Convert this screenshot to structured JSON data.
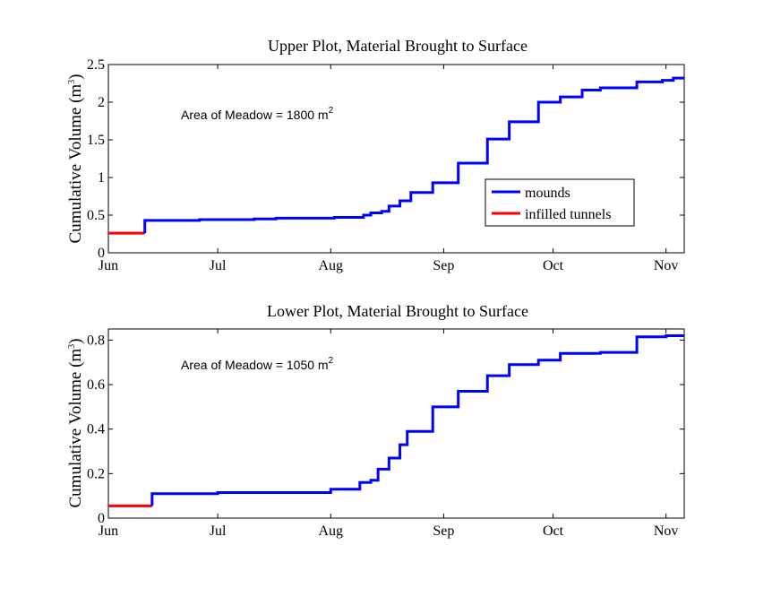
{
  "chart_data": [
    {
      "type": "line",
      "title": "Upper Plot, Material Brought to Surface",
      "ylabel": "Cumulative Volume (m",
      "ylabel_sup": "3",
      "ylabel_close": ")",
      "annotation": "Area of Meadow = 1800 m",
      "annotation_sup": "2",
      "xlim": [
        0,
        158
      ],
      "ylim": [
        0,
        2.5
      ],
      "xticks": [
        {
          "label": "Jun",
          "value": 0
        },
        {
          "label": "Jul",
          "value": 30
        },
        {
          "label": "Aug",
          "value": 61
        },
        {
          "label": "Sep",
          "value": 92
        },
        {
          "label": "Oct",
          "value": 122
        },
        {
          "label": "Nov",
          "value": 153
        }
      ],
      "yticks": [
        {
          "label": "0",
          "value": 0
        },
        {
          "label": "0.5",
          "value": 0.5
        },
        {
          "label": "1",
          "value": 1
        },
        {
          "label": "1.5",
          "value": 1.5
        },
        {
          "label": "2",
          "value": 2
        },
        {
          "label": "2.5",
          "value": 2.5
        }
      ],
      "legend": {
        "position": "inside-right",
        "entries": [
          {
            "name": "mounds",
            "color": "#0000ff"
          },
          {
            "name": "infilled tunnels",
            "color": "#ff0000"
          }
        ]
      },
      "series": [
        {
          "name": "infilled tunnels",
          "color": "#ff0000",
          "points": [
            [
              0,
              0.26
            ],
            [
              10,
              0.26
            ]
          ]
        },
        {
          "name": "mounds",
          "color": "#0000ff",
          "points": [
            [
              10,
              0.26
            ],
            [
              10,
              0.43
            ],
            [
              25,
              0.43
            ],
            [
              25,
              0.44
            ],
            [
              40,
              0.44
            ],
            [
              40,
              0.45
            ],
            [
              46,
              0.45
            ],
            [
              46,
              0.46
            ],
            [
              62,
              0.46
            ],
            [
              62,
              0.47
            ],
            [
              70,
              0.47
            ],
            [
              70,
              0.5
            ],
            [
              72,
              0.5
            ],
            [
              72,
              0.53
            ],
            [
              75,
              0.53
            ],
            [
              75,
              0.55
            ],
            [
              77,
              0.55
            ],
            [
              77,
              0.62
            ],
            [
              80,
              0.62
            ],
            [
              80,
              0.69
            ],
            [
              83,
              0.69
            ],
            [
              83,
              0.8
            ],
            [
              89,
              0.8
            ],
            [
              89,
              0.93
            ],
            [
              96,
              0.93
            ],
            [
              96,
              1.19
            ],
            [
              104,
              1.19
            ],
            [
              104,
              1.51
            ],
            [
              110,
              1.51
            ],
            [
              110,
              1.74
            ],
            [
              118,
              1.74
            ],
            [
              118,
              2.0
            ],
            [
              124,
              2.0
            ],
            [
              124,
              2.07
            ],
            [
              130,
              2.07
            ],
            [
              130,
              2.16
            ],
            [
              135,
              2.16
            ],
            [
              135,
              2.19
            ],
            [
              145,
              2.19
            ],
            [
              145,
              2.27
            ],
            [
              152,
              2.27
            ],
            [
              152,
              2.29
            ],
            [
              155,
              2.29
            ],
            [
              155,
              2.32
            ],
            [
              158,
              2.32
            ]
          ]
        }
      ]
    },
    {
      "type": "line",
      "title": "Lower Plot, Material Brought to Surface",
      "ylabel": "Cumulative Volume (m",
      "ylabel_sup": "3",
      "ylabel_close": ")",
      "annotation": "Area of Meadow = 1050 m",
      "annotation_sup": "2",
      "xlim": [
        0,
        158
      ],
      "ylim": [
        0,
        0.85
      ],
      "xticks": [
        {
          "label": "Jun",
          "value": 0
        },
        {
          "label": "Jul",
          "value": 30
        },
        {
          "label": "Aug",
          "value": 61
        },
        {
          "label": "Sep",
          "value": 92
        },
        {
          "label": "Oct",
          "value": 122
        },
        {
          "label": "Nov",
          "value": 153
        }
      ],
      "yticks": [
        {
          "label": "0",
          "value": 0
        },
        {
          "label": "0.2",
          "value": 0.2
        },
        {
          "label": "0.4",
          "value": 0.4
        },
        {
          "label": "0.6",
          "value": 0.6
        },
        {
          "label": "0.8",
          "value": 0.8
        }
      ],
      "series": [
        {
          "name": "infilled tunnels",
          "color": "#ff0000",
          "points": [
            [
              0,
              0.055
            ],
            [
              12,
              0.055
            ]
          ]
        },
        {
          "name": "mounds",
          "color": "#0000ff",
          "points": [
            [
              12,
              0.055
            ],
            [
              12,
              0.11
            ],
            [
              30,
              0.11
            ],
            [
              30,
              0.115
            ],
            [
              61,
              0.115
            ],
            [
              61,
              0.13
            ],
            [
              69,
              0.13
            ],
            [
              69,
              0.16
            ],
            [
              72,
              0.16
            ],
            [
              72,
              0.17
            ],
            [
              74,
              0.17
            ],
            [
              74,
              0.22
            ],
            [
              77,
              0.22
            ],
            [
              77,
              0.27
            ],
            [
              80,
              0.27
            ],
            [
              80,
              0.33
            ],
            [
              82,
              0.33
            ],
            [
              82,
              0.39
            ],
            [
              89,
              0.39
            ],
            [
              89,
              0.5
            ],
            [
              96,
              0.5
            ],
            [
              96,
              0.57
            ],
            [
              104,
              0.57
            ],
            [
              104,
              0.64
            ],
            [
              110,
              0.64
            ],
            [
              110,
              0.69
            ],
            [
              118,
              0.69
            ],
            [
              118,
              0.71
            ],
            [
              124,
              0.71
            ],
            [
              124,
              0.74
            ],
            [
              135,
              0.74
            ],
            [
              135,
              0.745
            ],
            [
              145,
              0.745
            ],
            [
              145,
              0.815
            ],
            [
              153,
              0.815
            ],
            [
              153,
              0.82
            ],
            [
              158,
              0.82
            ]
          ]
        }
      ]
    }
  ]
}
